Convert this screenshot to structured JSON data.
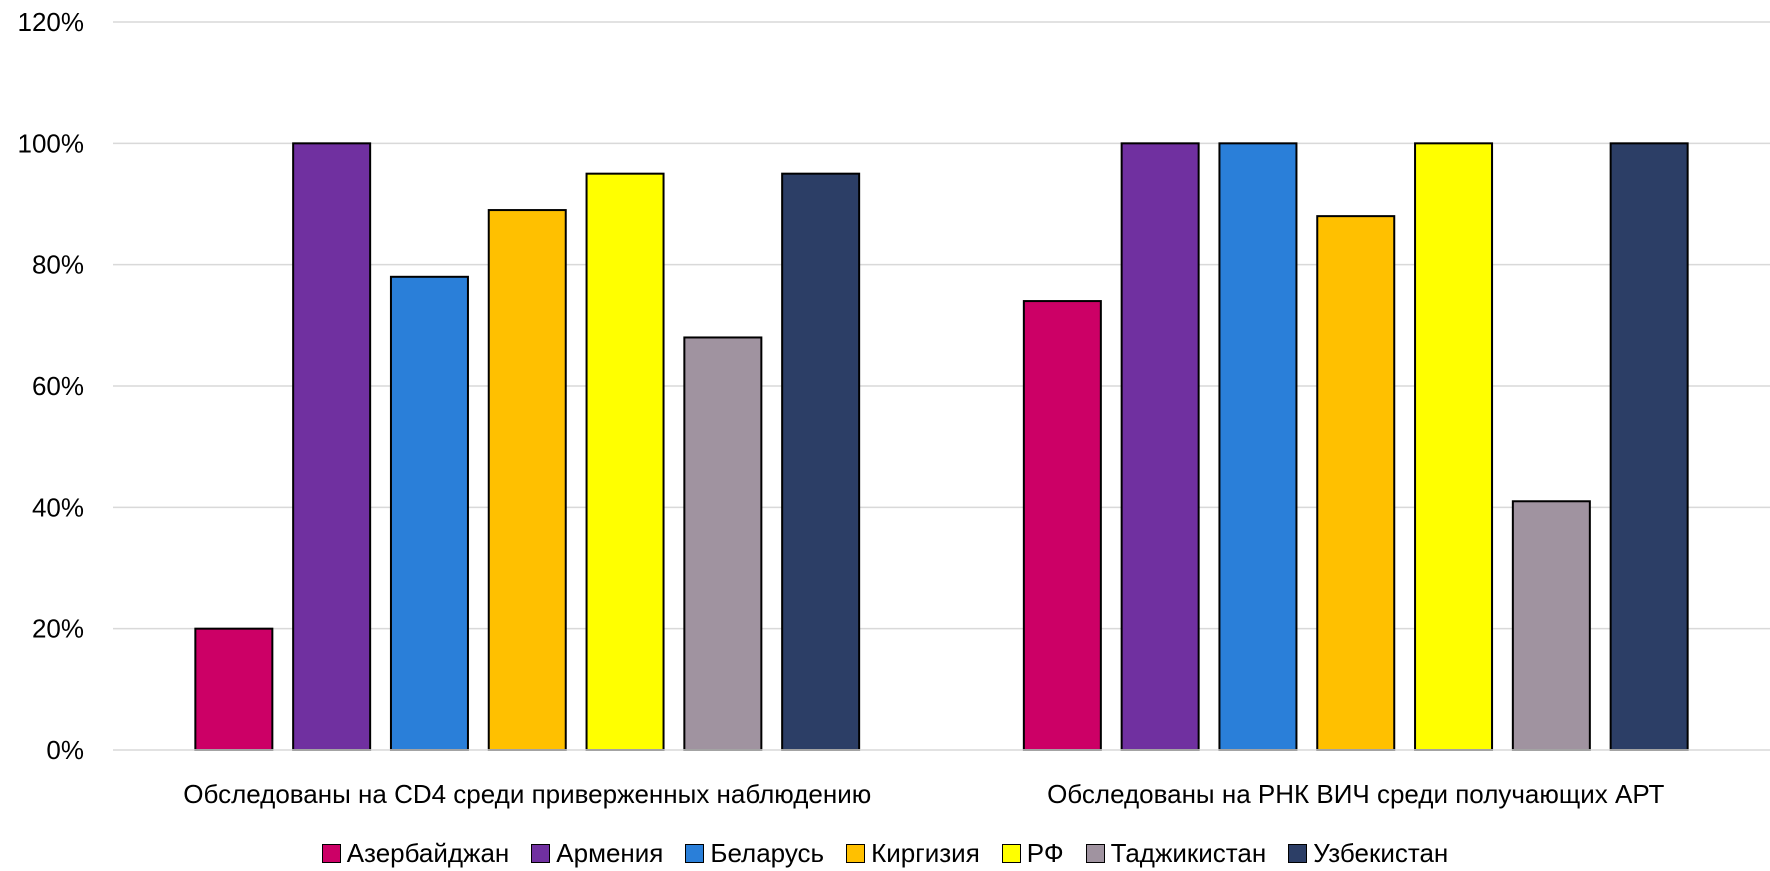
{
  "chart_data": {
    "type": "bar",
    "categories": [
      "Обследованы на CD4 среди приверженных наблюдению",
      "Обследованы на РНК ВИЧ среди получающих АРТ"
    ],
    "series": [
      {
        "name": "Азербайджан",
        "color": "#CC0066",
        "values": [
          20,
          74
        ]
      },
      {
        "name": "Армения",
        "color": "#7030A0",
        "values": [
          100,
          100
        ]
      },
      {
        "name": "Беларусь",
        "color": "#2A7FD9",
        "values": [
          78,
          100
        ]
      },
      {
        "name": "Киргизия",
        "color": "#FFC000",
        "values": [
          89,
          88
        ]
      },
      {
        "name": "РФ",
        "color": "#FFFF00",
        "values": [
          95,
          100
        ]
      },
      {
        "name": "Таджикистан",
        "color": "#A093A0",
        "values": [
          68,
          41
        ]
      },
      {
        "name": "Узбекистан",
        "color": "#2C3E66",
        "values": [
          95,
          100
        ]
      }
    ],
    "ylim": [
      0,
      120
    ],
    "yticks": [
      0,
      20,
      40,
      60,
      80,
      100,
      120
    ],
    "ytick_labels": [
      "0%",
      "20%",
      "40%",
      "60%",
      "80%",
      "100%",
      "120%"
    ],
    "grid": true,
    "legend_position": "bottom"
  }
}
